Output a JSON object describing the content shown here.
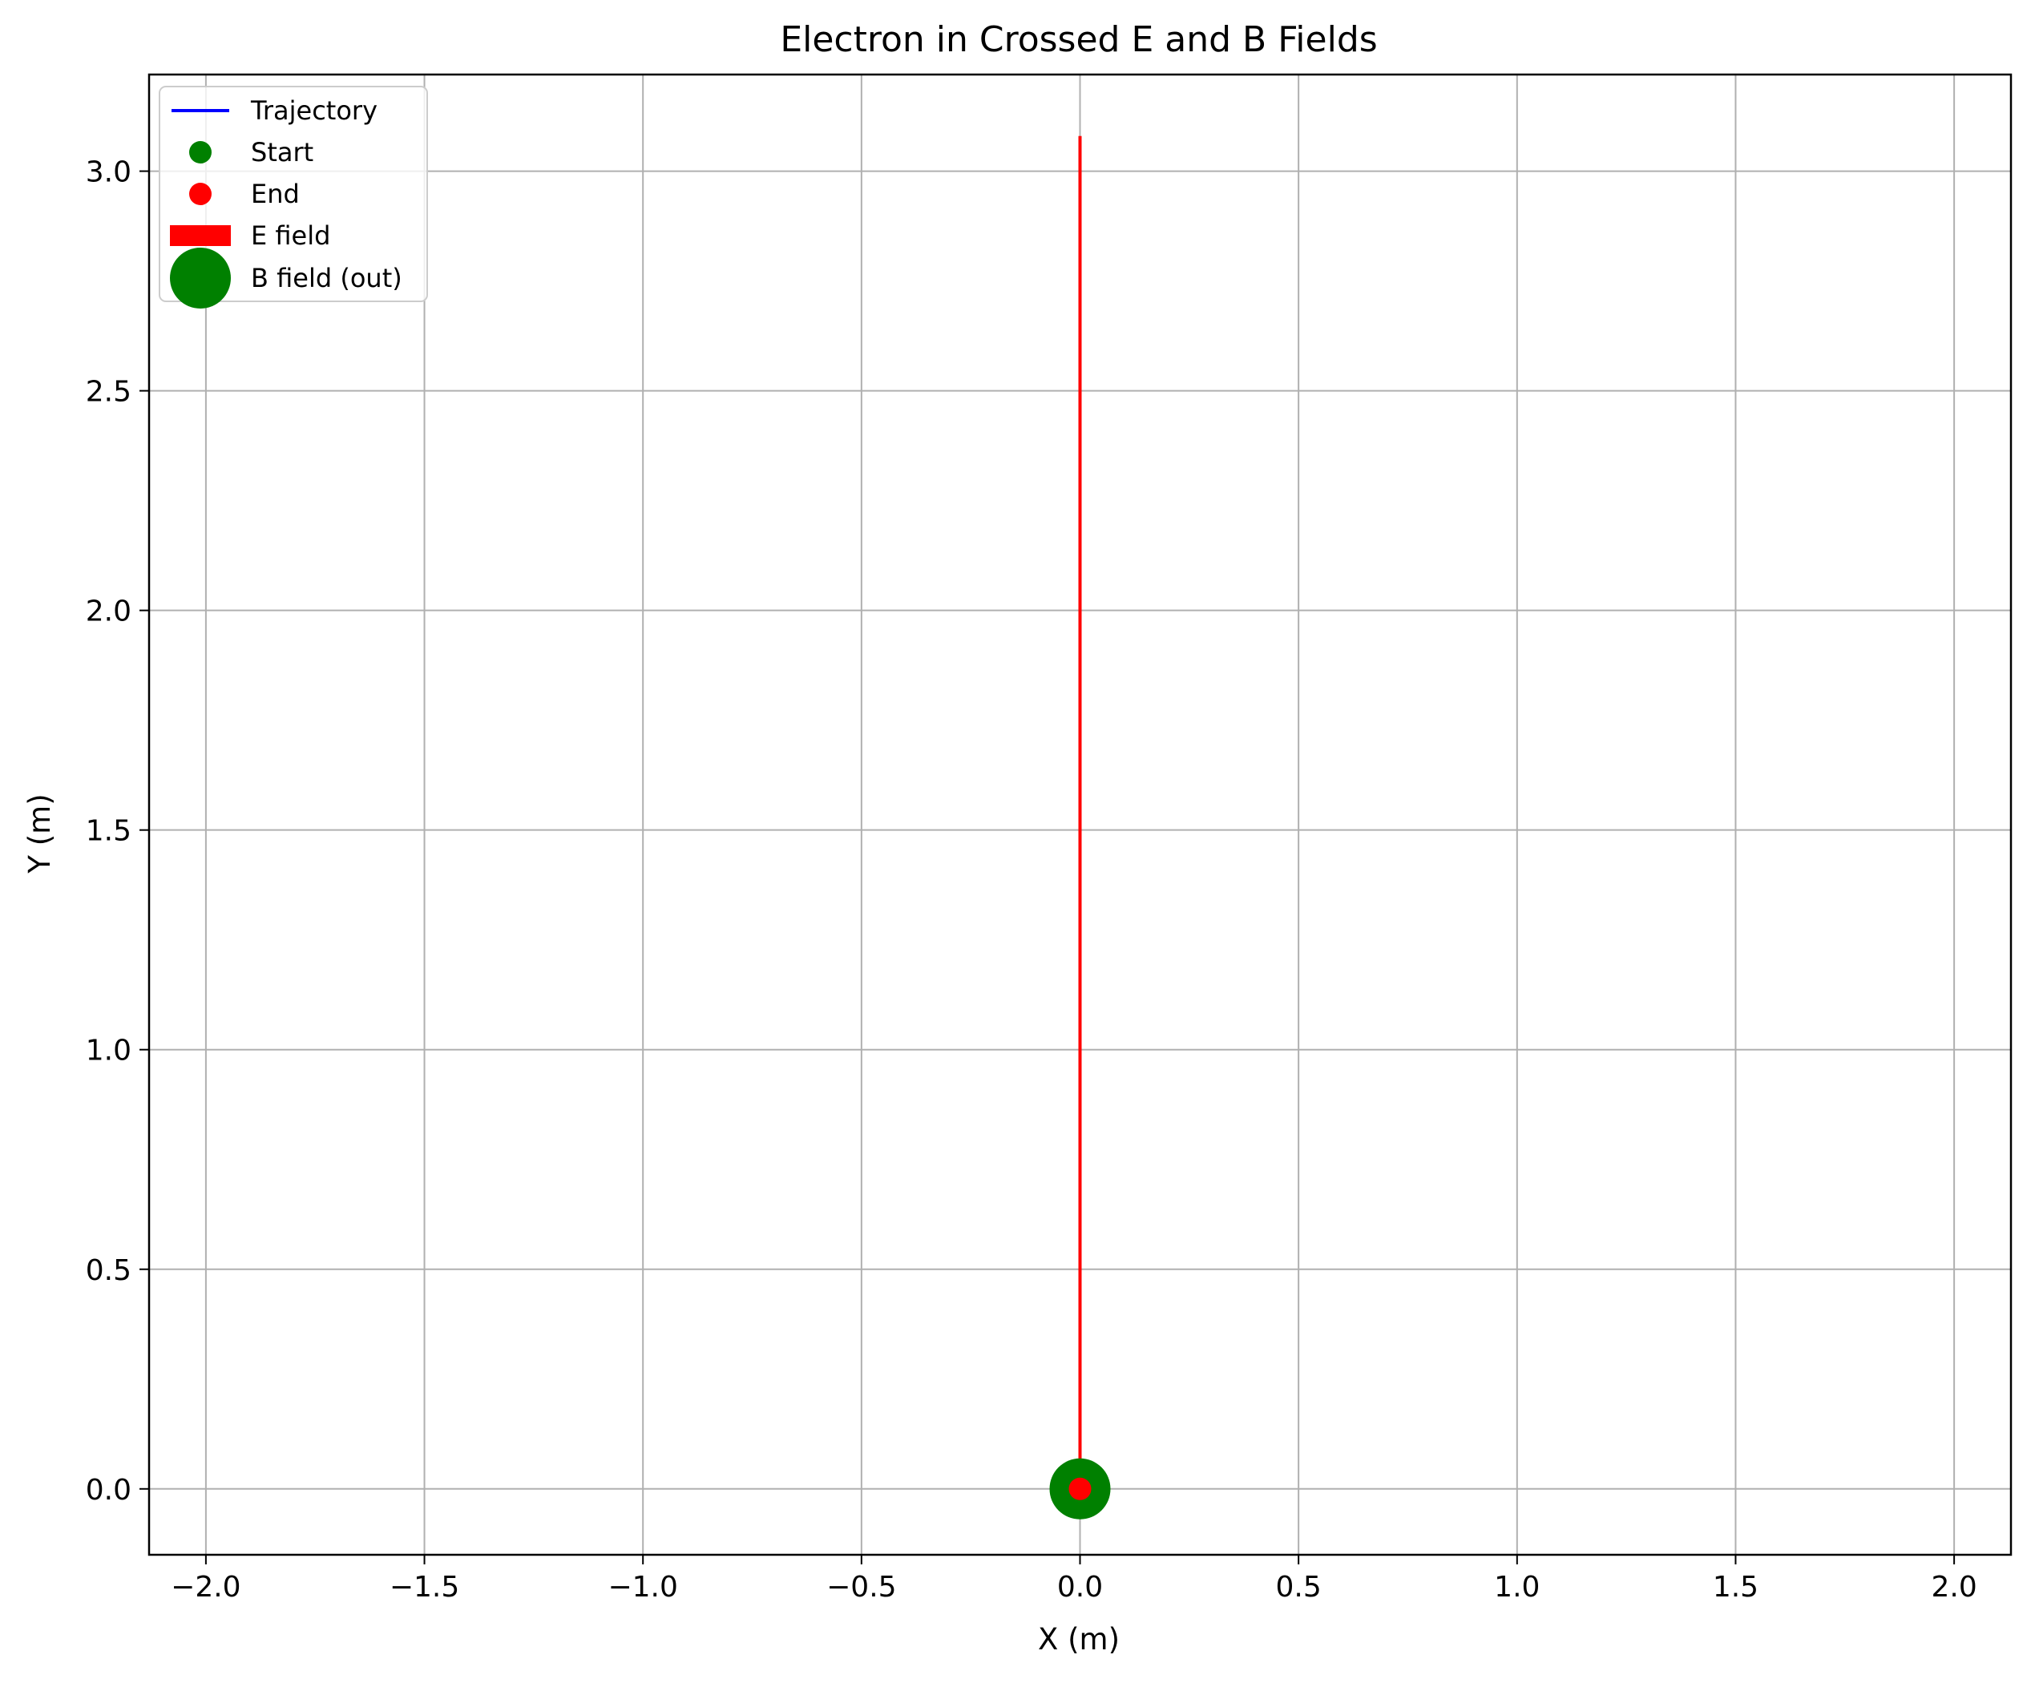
{
  "chart_data": {
    "type": "line",
    "title": "Electron in Crossed E and B Fields",
    "xlabel": "X (m)",
    "ylabel": "Y (m)",
    "xlim": [
      -2.13,
      2.13
    ],
    "ylim": [
      -0.15,
      3.22
    ],
    "grid": true,
    "legend_position": "top-left",
    "x_ticks": [
      -2.0,
      -1.5,
      -1.0,
      -0.5,
      0.0,
      0.5,
      1.0,
      1.5,
      2.0
    ],
    "x_tick_labels": [
      "−2.0",
      "−1.5",
      "−1.0",
      "−0.5",
      "0.0",
      "0.5",
      "1.0",
      "1.5",
      "2.0"
    ],
    "y_ticks": [
      0.0,
      0.5,
      1.0,
      1.5,
      2.0,
      2.5,
      3.0
    ],
    "y_tick_labels": [
      "0.0",
      "0.5",
      "1.0",
      "1.5",
      "2.0",
      "2.5",
      "3.0"
    ],
    "series": [
      {
        "name": "Trajectory",
        "kind": "line",
        "color": "#0000ff",
        "x": [
          0.0,
          0.0
        ],
        "y": [
          0.0,
          0.0
        ]
      },
      {
        "name": "Start",
        "kind": "point",
        "color": "#008000",
        "x": [
          0.0
        ],
        "y": [
          0.0
        ]
      },
      {
        "name": "End",
        "kind": "point",
        "color": "#ff0000",
        "x": [
          0.0
        ],
        "y": [
          0.0
        ]
      },
      {
        "name": "E field",
        "kind": "arrow",
        "color": "#ff0000",
        "x": [
          0.0,
          0.0
        ],
        "y": [
          0.0,
          3.08
        ]
      },
      {
        "name": "B field (out)",
        "kind": "marker",
        "color": "#008000",
        "x": [
          0.0
        ],
        "y": [
          0.0
        ]
      }
    ]
  }
}
